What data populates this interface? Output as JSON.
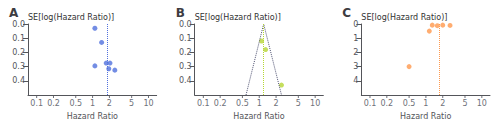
{
  "chart_data": [
    {
      "type": "scatter",
      "title": "A",
      "xlabel": "Hazard Ratio",
      "ylabel": "SE[log(Hazard Ratio)]",
      "log": "x",
      "grid": false,
      "x": [
        1.1,
        1.45,
        1.1,
        1.75,
        2.05,
        1.95,
        2.5
      ],
      "values": [
        0.03,
        0.13,
        0.295,
        0.275,
        0.275,
        0.315,
        0.325
      ],
      "xlim": [
        0.07,
        14
      ],
      "xticks": [
        0.1,
        0.2,
        0.5,
        1,
        2,
        5,
        10
      ],
      "ylim": [
        0.5,
        0
      ],
      "yticks": [
        {
          "value": 0,
          "label": "0.0"
        },
        0.1,
        0.2,
        0.3,
        0.4
      ],
      "vline": 1.8
    },
    {
      "type": "scatter",
      "title": "B",
      "xlabel": "Hazard Ratio",
      "ylabel": "SE[log(Hazard Ratio)]",
      "log": "x",
      "grid": false,
      "x": [
        1.1,
        1.3,
        2.5
      ],
      "values": [
        0.12,
        0.18,
        0.43
      ],
      "xlim": [
        0.07,
        14
      ],
      "xticks": [
        0.1,
        0.2,
        0.5,
        1,
        2,
        5,
        10
      ],
      "ylim": [
        0.5,
        0
      ],
      "yticks": [
        {
          "value": 0,
          "label": "0.0"
        },
        0.1,
        0.2,
        0.3,
        0.4
      ],
      "vline": 1.2,
      "funnel": {
        "x": [
          0.58,
          1.2,
          2.5
        ],
        "values": [
          0.5,
          0.0,
          0.5
        ]
      }
    },
    {
      "type": "scatter",
      "title": "C",
      "xlabel": "Hazard Ratio",
      "ylabel": "SE[log(Hazard Ratio)]",
      "log": "x",
      "grid": false,
      "x": [
        1.15,
        1.3,
        1.6,
        2.0,
        2.7,
        0.5
      ],
      "values": [
        0.5,
        0.08,
        0.12,
        0.08,
        0.1,
        3.0
      ],
      "xlim": [
        0.07,
        14
      ],
      "xticks": [
        0.1,
        0.2,
        0.5,
        1,
        2,
        5,
        10
      ],
      "ylim": [
        5,
        0
      ],
      "yticks": [
        0,
        1,
        2,
        3,
        4
      ],
      "vline": 1.7
    }
  ]
}
